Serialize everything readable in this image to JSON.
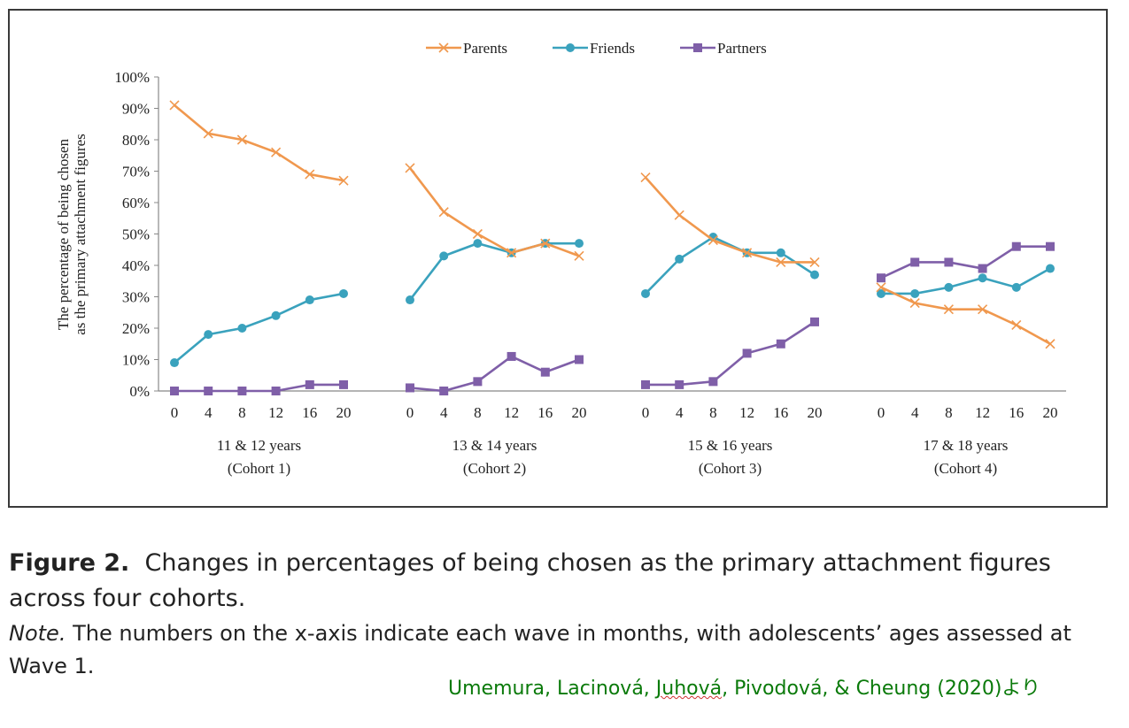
{
  "chart_data": {
    "type": "line",
    "ylabel_line1": "The percentage of being chosen",
    "ylabel_line2": "as the primary attachment figures",
    "ylim": [
      0,
      100
    ],
    "y_ticks": [
      "0%",
      "10%",
      "20%",
      "30%",
      "40%",
      "50%",
      "60%",
      "70%",
      "80%",
      "90%",
      "100%"
    ],
    "x_tick_labels": [
      "0",
      "4",
      "8",
      "12",
      "16",
      "20"
    ],
    "legend_position": "top-center",
    "grid": false,
    "legend": [
      {
        "name": "Parents",
        "color": "#F0984E",
        "marker": "x"
      },
      {
        "name": "Friends",
        "color": "#3AA2BD",
        "marker": "circle"
      },
      {
        "name": "Partners",
        "color": "#7F5FA8",
        "marker": "square"
      }
    ],
    "cohorts": [
      {
        "label": "11 & 12 years",
        "sublabel": "(Cohort 1)",
        "x": [
          0,
          4,
          8,
          12,
          16,
          20
        ],
        "series": {
          "Parents": [
            91,
            82,
            80,
            76,
            69,
            67
          ],
          "Friends": [
            9,
            18,
            20,
            24,
            29,
            31
          ],
          "Partners": [
            0,
            0,
            0,
            0,
            2,
            2
          ]
        }
      },
      {
        "label": "13 & 14 years",
        "sublabel": "(Cohort 2)",
        "x": [
          0,
          4,
          8,
          12,
          16,
          20
        ],
        "series": {
          "Parents": [
            71,
            57,
            50,
            44,
            47,
            43
          ],
          "Friends": [
            29,
            43,
            47,
            44,
            47,
            47
          ],
          "Partners": [
            1,
            0,
            3,
            11,
            6,
            10
          ]
        }
      },
      {
        "label": "15 & 16 years",
        "sublabel": "(Cohort 3)",
        "x": [
          0,
          4,
          8,
          12,
          16,
          20
        ],
        "series": {
          "Parents": [
            68,
            56,
            48,
            44,
            41,
            41
          ],
          "Friends": [
            31,
            42,
            49,
            44,
            44,
            37
          ],
          "Partners": [
            2,
            2,
            3,
            12,
            15,
            22
          ]
        }
      },
      {
        "label": "17 & 18 years",
        "sublabel": "(Cohort 4)",
        "x": [
          0,
          4,
          8,
          12,
          16,
          20
        ],
        "series": {
          "Parents": [
            33,
            28,
            26,
            26,
            21,
            15
          ],
          "Friends": [
            31,
            31,
            33,
            36,
            33,
            39
          ],
          "Partners": [
            36,
            41,
            41,
            39,
            46,
            46
          ]
        }
      }
    ]
  },
  "caption": {
    "figure_label": "Figure 2.",
    "text": "Changes in percentages of being chosen as the primary attachment figures across four cohorts.",
    "note_label": "Note.",
    "note_text": "The numbers on the x-axis indicate each wave in months, with adolescents’ ages assessed at Wave 1."
  },
  "source": {
    "prefix": "Umemura, Lacinová, ",
    "underlined": "Juhová",
    "suffix": ", Pivodová, & Cheung (2020)より"
  }
}
